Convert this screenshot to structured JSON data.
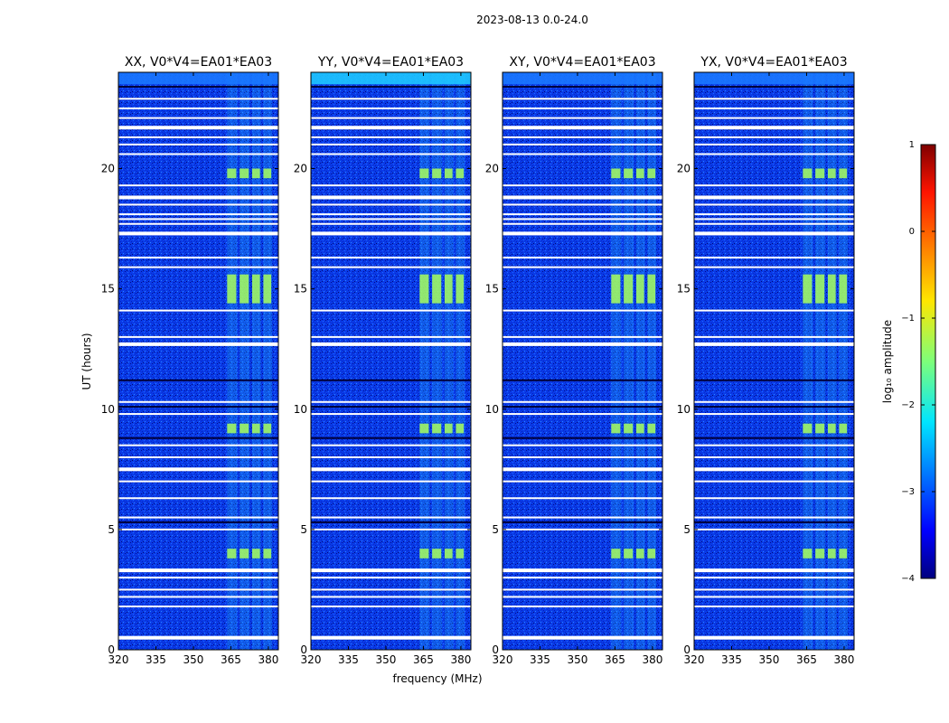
{
  "figure": {
    "suptitle": "2023-08-13 0.0-24.0",
    "xlabel": "frequency (MHz)",
    "ylabel": "UT (hours)"
  },
  "colors": {
    "background_low": "#00127a",
    "background_mid": "#0a3cf0",
    "flag_band": "#ffffff",
    "gap_band": "#00003a",
    "rfi_band": "#2fd6ff",
    "rfi_strong": "#a8ff5a"
  },
  "chart_data": {
    "type": "heatmap",
    "x_range": [
      320,
      384
    ],
    "x_ticks": [
      320,
      335,
      350,
      365,
      380
    ],
    "y_range": [
      0,
      24
    ],
    "y_ticks": [
      0,
      5,
      10,
      15,
      20
    ],
    "panels": [
      {
        "title": "XX, V0*V4=EA01*EA03"
      },
      {
        "title": "YY, V0*V4=EA01*EA03"
      },
      {
        "title": "XY, V0*V4=EA01*EA03"
      },
      {
        "title": "YX, V0*V4=EA01*EA03"
      }
    ],
    "colorbar": {
      "label": "log₁₀ amplitude",
      "range": [
        -4,
        1
      ],
      "ticks": [
        "1",
        "0",
        "−1",
        "−2",
        "−3",
        "−4"
      ],
      "colormap": "jet"
    },
    "rfi_channels_mhz": [
      [
        363.5,
        367.5
      ],
      [
        368.5,
        372.5
      ],
      [
        373.5,
        377
      ],
      [
        378,
        381.5
      ]
    ],
    "strong_rfi_hours": [
      [
        3.8,
        4.2
      ],
      [
        9.0,
        9.4
      ],
      [
        14.4,
        15.6
      ],
      [
        19.6,
        20.0
      ]
    ],
    "flagged_hours": [
      0.5,
      1.8,
      2.2,
      2.5,
      3.0,
      3.3,
      5.0,
      5.5,
      6.3,
      7.0,
      7.5,
      8.0,
      8.5,
      9.8,
      10.3,
      12.7,
      13.0,
      14.1,
      15.9,
      16.3,
      17.3,
      17.7,
      17.9,
      18.1,
      18.5,
      18.8,
      19.3,
      20.6,
      21.0,
      21.3,
      21.7,
      22.1,
      22.5,
      22.9
    ]
  }
}
